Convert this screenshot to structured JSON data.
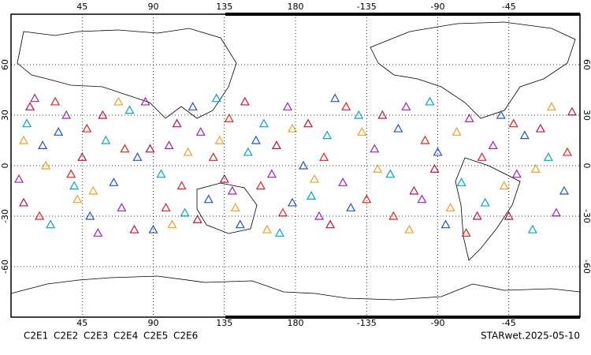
{
  "map": {
    "xticks": [
      45,
      90,
      135,
      180,
      -135,
      -90,
      -45
    ],
    "yticks": [
      60,
      30,
      0,
      -30,
      -60
    ],
    "xlim": [
      0,
      360
    ],
    "ylim": [
      -90,
      90
    ],
    "grid": true,
    "stamp": "STARwet.2025-05-10",
    "series": [
      {
        "name": "C2E1",
        "color": "#00a8c8",
        "points": [
          [
            10,
            25
          ],
          [
            40,
            -12
          ],
          [
            75,
            33
          ],
          [
            110,
            -28
          ],
          [
            150,
            8
          ],
          [
            170,
            -40
          ],
          [
            -160,
            18
          ],
          [
            -120,
            -5
          ],
          [
            -95,
            38
          ],
          [
            -60,
            -22
          ],
          [
            -20,
            5
          ],
          [
            25,
            -35
          ],
          [
            60,
            15
          ],
          [
            130,
            40
          ],
          [
            -170,
            -18
          ],
          [
            -140,
            30
          ],
          [
            -75,
            -10
          ],
          [
            -30,
            -38
          ],
          [
            95,
            -5
          ],
          [
            160,
            25
          ]
        ]
      },
      {
        "name": "C2E2",
        "color": "#a020c0",
        "points": [
          [
            5,
            -8
          ],
          [
            35,
            30
          ],
          [
            70,
            -25
          ],
          [
            100,
            12
          ],
          [
            140,
            -15
          ],
          [
            175,
            35
          ],
          [
            -165,
            -30
          ],
          [
            -130,
            10
          ],
          [
            -100,
            -20
          ],
          [
            -70,
            28
          ],
          [
            -40,
            -5
          ],
          [
            15,
            40
          ],
          [
            55,
            -40
          ],
          [
            120,
            20
          ],
          [
            -150,
            -10
          ],
          [
            -110,
            35
          ],
          [
            -55,
            12
          ],
          [
            -15,
            -28
          ],
          [
            85,
            38
          ],
          [
            165,
            -5
          ]
        ]
      },
      {
        "name": "C2E3",
        "color": "#2050d8",
        "points": [
          [
            20,
            12
          ],
          [
            50,
            -30
          ],
          [
            80,
            5
          ],
          [
            115,
            35
          ],
          [
            145,
            -35
          ],
          [
            -175,
            0
          ],
          [
            -145,
            -25
          ],
          [
            -115,
            22
          ],
          [
            -85,
            -35
          ],
          [
            -50,
            30
          ],
          [
            -10,
            -15
          ],
          [
            30,
            20
          ],
          [
            65,
            -10
          ],
          [
            125,
            -20
          ],
          [
            155,
            15
          ],
          [
            -155,
            40
          ],
          [
            -90,
            8
          ],
          [
            -35,
            18
          ],
          [
            90,
            -38
          ],
          [
            178,
            -22
          ]
        ]
      },
      {
        "name": "C2E4",
        "color": "#c8103c",
        "points": [
          [
            12,
            35
          ],
          [
            45,
            5
          ],
          [
            78,
            -38
          ],
          [
            105,
            25
          ],
          [
            135,
            -8
          ],
          [
            168,
            12
          ],
          [
            -158,
            -35
          ],
          [
            -125,
            30
          ],
          [
            -92,
            -2
          ],
          [
            -65,
            -30
          ],
          [
            -25,
            22
          ],
          [
            8,
            -22
          ],
          [
            58,
            30
          ],
          [
            118,
            -32
          ],
          [
            148,
            38
          ],
          [
            -172,
            25
          ],
          [
            -105,
            -15
          ],
          [
            -45,
            -30
          ],
          [
            88,
            10
          ],
          [
            -5,
            32
          ]
        ]
      },
      {
        "name": "C2E5",
        "color": "#e82020",
        "points": [
          [
            18,
            -30
          ],
          [
            48,
            22
          ],
          [
            72,
            10
          ],
          [
            108,
            -12
          ],
          [
            138,
            28
          ],
          [
            172,
            -28
          ],
          [
            -162,
            5
          ],
          [
            -135,
            -20
          ],
          [
            -98,
            15
          ],
          [
            -72,
            -40
          ],
          [
            -42,
            25
          ],
          [
            -8,
            8
          ],
          [
            38,
            -5
          ],
          [
            98,
            -25
          ],
          [
            128,
            5
          ],
          [
            158,
            -12
          ],
          [
            -148,
            35
          ],
          [
            -118,
            -30
          ],
          [
            -62,
            5
          ],
          [
            28,
            38
          ]
        ]
      },
      {
        "name": "C2E6",
        "color": "#f0a020",
        "points": [
          [
            8,
            15
          ],
          [
            42,
            -20
          ],
          [
            68,
            38
          ],
          [
            102,
            -35
          ],
          [
            132,
            15
          ],
          [
            162,
            -38
          ],
          [
            -168,
            -8
          ],
          [
            -138,
            20
          ],
          [
            -108,
            -38
          ],
          [
            -78,
            20
          ],
          [
            -48,
            -12
          ],
          [
            -18,
            35
          ],
          [
            22,
            0
          ],
          [
            52,
            -15
          ],
          [
            112,
            8
          ],
          [
            142,
            -25
          ],
          [
            178,
            22
          ],
          [
            -128,
            -2
          ],
          [
            -82,
            -25
          ],
          [
            -28,
            -2
          ]
        ]
      }
    ]
  }
}
